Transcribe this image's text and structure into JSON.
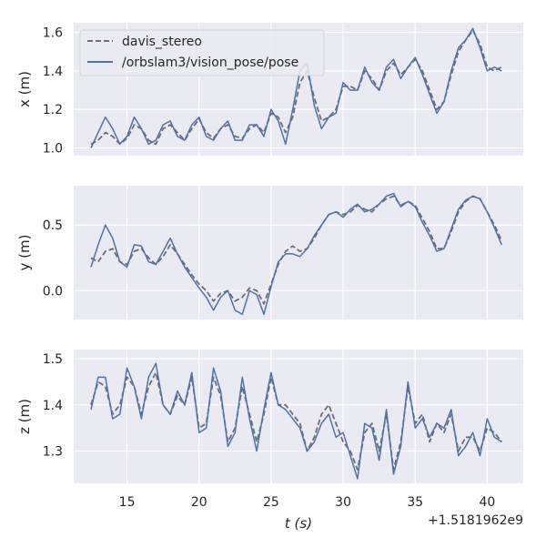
{
  "chart_data": {
    "type": "line",
    "style": "seaborn-darkgrid",
    "x_offset_label": "+1.5181962e9",
    "xlabel": "t (s)",
    "xlim": [
      11.3,
      42.5
    ],
    "xticks": [
      15,
      20,
      25,
      30,
      35,
      40
    ],
    "legend": {
      "location": "top-left",
      "panel": 0,
      "entries": [
        {
          "name": "davis_stereo",
          "color": "#6e6e6e",
          "dash": "dashed"
        },
        {
          "name": "/orbslam3/vision_pose/pose",
          "color": "#4c72b0",
          "dash": "solid"
        }
      ]
    },
    "panels": [
      {
        "ylabel": "x (m)",
        "ylim": [
          0.96,
          1.65
        ],
        "yticks": [
          "1.0",
          "1.2",
          "1.4",
          "1.6"
        ],
        "ytick_values": [
          1.0,
          1.2,
          1.4,
          1.6
        ],
        "series": [
          {
            "name": "davis_stereo",
            "x": [
              12.5,
              13,
              13.5,
              14,
              14.5,
              15,
              15.5,
              16,
              16.5,
              17,
              17.5,
              18,
              18.5,
              19,
              19.5,
              20,
              20.5,
              21,
              21.5,
              22,
              22.5,
              23,
              23.5,
              24,
              24.5,
              25,
              25.5,
              26,
              26.5,
              27,
              27.5,
              28,
              28.5,
              29,
              29.5,
              30,
              30.5,
              31,
              31.5,
              32,
              32.5,
              33,
              33.5,
              34,
              34.5,
              35,
              35.5,
              36,
              36.5,
              37,
              37.5,
              38,
              38.5,
              39,
              39.5,
              40,
              40.5,
              41
            ],
            "y": [
              1.02,
              1.04,
              1.08,
              1.06,
              1.02,
              1.05,
              1.12,
              1.1,
              1.04,
              1.02,
              1.1,
              1.12,
              1.08,
              1.04,
              1.1,
              1.15,
              1.08,
              1.05,
              1.1,
              1.12,
              1.06,
              1.05,
              1.1,
              1.12,
              1.08,
              1.18,
              1.16,
              1.08,
              1.16,
              1.34,
              1.4,
              1.26,
              1.14,
              1.16,
              1.2,
              1.32,
              1.32,
              1.3,
              1.4,
              1.36,
              1.3,
              1.4,
              1.44,
              1.38,
              1.42,
              1.46,
              1.4,
              1.3,
              1.2,
              1.24,
              1.38,
              1.5,
              1.56,
              1.61,
              1.54,
              1.42,
              1.4,
              1.42
            ]
          },
          {
            "name": "/orbslam3/vision_pose/pose",
            "x": [
              12.5,
              13,
              13.5,
              14,
              14.5,
              15,
              15.5,
              16,
              16.5,
              17,
              17.5,
              18,
              18.5,
              19,
              19.5,
              20,
              20.5,
              21,
              21.5,
              22,
              22.5,
              23,
              23.5,
              24,
              24.5,
              25,
              25.5,
              26,
              26.5,
              27,
              27.5,
              28,
              28.5,
              29,
              29.5,
              30,
              30.5,
              31,
              31.5,
              32,
              32.5,
              33,
              33.5,
              34,
              34.5,
              35,
              35.5,
              36,
              36.5,
              37,
              37.5,
              38,
              38.5,
              39,
              39.5,
              40,
              40.5,
              41
            ],
            "y": [
              1.0,
              1.08,
              1.16,
              1.1,
              1.02,
              1.06,
              1.16,
              1.1,
              1.02,
              1.04,
              1.12,
              1.14,
              1.06,
              1.04,
              1.12,
              1.16,
              1.06,
              1.04,
              1.1,
              1.14,
              1.04,
              1.04,
              1.12,
              1.12,
              1.06,
              1.2,
              1.14,
              1.02,
              1.2,
              1.4,
              1.44,
              1.22,
              1.1,
              1.16,
              1.18,
              1.34,
              1.3,
              1.3,
              1.42,
              1.34,
              1.3,
              1.42,
              1.46,
              1.36,
              1.42,
              1.47,
              1.38,
              1.28,
              1.18,
              1.24,
              1.4,
              1.52,
              1.56,
              1.62,
              1.52,
              1.4,
              1.42,
              1.4
            ]
          }
        ]
      },
      {
        "ylabel": "y (m)",
        "ylim": [
          -0.22,
          0.8
        ],
        "yticks": [
          "0.0",
          "0.5"
        ],
        "ytick_values": [
          0.0,
          0.5
        ],
        "series": [
          {
            "name": "davis_stereo",
            "x": [
              12.5,
              13,
              13.5,
              14,
              14.5,
              15,
              15.5,
              16,
              16.5,
              17,
              17.5,
              18,
              18.5,
              19,
              19.5,
              20,
              20.5,
              21,
              21.5,
              22,
              22.5,
              23,
              23.5,
              24,
              24.5,
              25,
              25.5,
              26,
              26.5,
              27,
              27.5,
              28,
              28.5,
              29,
              29.5,
              30,
              30.5,
              31,
              31.5,
              32,
              32.5,
              33,
              33.5,
              34,
              34.5,
              35,
              35.5,
              36,
              36.5,
              37,
              37.5,
              38,
              38.5,
              39,
              39.5,
              40,
              40.5,
              41
            ],
            "y": [
              0.25,
              0.22,
              0.3,
              0.32,
              0.22,
              0.2,
              0.3,
              0.32,
              0.25,
              0.2,
              0.26,
              0.35,
              0.28,
              0.2,
              0.12,
              0.05,
              0.0,
              -0.08,
              -0.02,
              0.0,
              -0.08,
              -0.05,
              0.02,
              0.0,
              -0.1,
              0.05,
              0.2,
              0.3,
              0.34,
              0.3,
              0.32,
              0.4,
              0.5,
              0.58,
              0.6,
              0.58,
              0.6,
              0.65,
              0.62,
              0.6,
              0.66,
              0.7,
              0.72,
              0.65,
              0.68,
              0.65,
              0.55,
              0.45,
              0.32,
              0.32,
              0.45,
              0.6,
              0.68,
              0.72,
              0.7,
              0.6,
              0.5,
              0.38
            ]
          },
          {
            "name": "/orbslam3/vision_pose/pose",
            "x": [
              12.5,
              13,
              13.5,
              14,
              14.5,
              15,
              15.5,
              16,
              16.5,
              17,
              17.5,
              18,
              18.5,
              19,
              19.5,
              20,
              20.5,
              21,
              21.5,
              22,
              22.5,
              23,
              23.5,
              24,
              24.5,
              25,
              25.5,
              26,
              26.5,
              27,
              27.5,
              28,
              28.5,
              29,
              29.5,
              30,
              30.5,
              31,
              31.5,
              32,
              32.5,
              33,
              33.5,
              34,
              34.5,
              35,
              35.5,
              36,
              36.5,
              37,
              37.5,
              38,
              38.5,
              39,
              39.5,
              40,
              40.5,
              41
            ],
            "y": [
              0.18,
              0.35,
              0.5,
              0.4,
              0.22,
              0.18,
              0.35,
              0.34,
              0.22,
              0.2,
              0.3,
              0.4,
              0.28,
              0.18,
              0.1,
              0.02,
              -0.05,
              -0.15,
              -0.05,
              0.0,
              -0.15,
              -0.18,
              0.0,
              -0.03,
              -0.18,
              0.03,
              0.22,
              0.28,
              0.28,
              0.26,
              0.32,
              0.42,
              0.5,
              0.58,
              0.6,
              0.56,
              0.62,
              0.66,
              0.6,
              0.62,
              0.66,
              0.72,
              0.74,
              0.64,
              0.68,
              0.64,
              0.52,
              0.42,
              0.3,
              0.32,
              0.47,
              0.62,
              0.69,
              0.72,
              0.7,
              0.6,
              0.48,
              0.35
            ]
          }
        ]
      },
      {
        "ylabel": "z (m)",
        "ylim": [
          1.23,
          1.52
        ],
        "yticks": [
          "1.3",
          "1.4",
          "1.5"
        ],
        "ytick_values": [
          1.3,
          1.4,
          1.5
        ],
        "series": [
          {
            "name": "davis_stereo",
            "x": [
              12.5,
              13,
              13.5,
              14,
              14.5,
              15,
              15.5,
              16,
              16.5,
              17,
              17.5,
              18,
              18.5,
              19,
              19.5,
              20,
              20.5,
              21,
              21.5,
              22,
              22.5,
              23,
              23.5,
              24,
              24.5,
              25,
              25.5,
              26,
              26.5,
              27,
              27.5,
              28,
              28.5,
              29,
              29.5,
              30,
              30.5,
              31,
              31.5,
              32,
              32.5,
              33,
              33.5,
              34,
              34.5,
              35,
              35.5,
              36,
              36.5,
              37,
              37.5,
              38,
              38.5,
              39,
              39.5,
              40,
              40.5,
              41
            ],
            "y": [
              1.4,
              1.45,
              1.44,
              1.38,
              1.4,
              1.46,
              1.44,
              1.38,
              1.44,
              1.47,
              1.4,
              1.38,
              1.42,
              1.4,
              1.46,
              1.35,
              1.36,
              1.46,
              1.42,
              1.32,
              1.35,
              1.44,
              1.38,
              1.32,
              1.38,
              1.46,
              1.4,
              1.4,
              1.38,
              1.36,
              1.3,
              1.33,
              1.38,
              1.4,
              1.36,
              1.32,
              1.3,
              1.26,
              1.34,
              1.36,
              1.3,
              1.38,
              1.26,
              1.32,
              1.44,
              1.36,
              1.38,
              1.32,
              1.36,
              1.34,
              1.38,
              1.3,
              1.33,
              1.33,
              1.3,
              1.35,
              1.34,
              1.32
            ]
          },
          {
            "name": "/orbslam3/vision_pose/pose",
            "x": [
              12.5,
              13,
              13.5,
              14,
              14.5,
              15,
              15.5,
              16,
              16.5,
              17,
              17.5,
              18,
              18.5,
              19,
              19.5,
              20,
              20.5,
              21,
              21.5,
              22,
              22.5,
              23,
              23.5,
              24,
              24.5,
              25,
              25.5,
              26,
              26.5,
              27,
              27.5,
              28,
              28.5,
              29,
              29.5,
              30,
              30.5,
              31,
              31.5,
              32,
              32.5,
              33,
              33.5,
              34,
              34.5,
              35,
              35.5,
              36,
              36.5,
              37,
              37.5,
              38,
              38.5,
              39,
              39.5,
              40,
              40.5,
              41
            ],
            "y": [
              1.39,
              1.46,
              1.46,
              1.37,
              1.38,
              1.48,
              1.44,
              1.37,
              1.46,
              1.49,
              1.4,
              1.38,
              1.43,
              1.4,
              1.47,
              1.34,
              1.35,
              1.48,
              1.43,
              1.31,
              1.34,
              1.46,
              1.37,
              1.3,
              1.39,
              1.47,
              1.4,
              1.39,
              1.37,
              1.35,
              1.3,
              1.32,
              1.36,
              1.38,
              1.33,
              1.34,
              1.29,
              1.24,
              1.36,
              1.35,
              1.28,
              1.39,
              1.25,
              1.31,
              1.45,
              1.35,
              1.37,
              1.33,
              1.36,
              1.35,
              1.39,
              1.29,
              1.31,
              1.34,
              1.29,
              1.37,
              1.33,
              1.32
            ]
          }
        ]
      }
    ]
  }
}
